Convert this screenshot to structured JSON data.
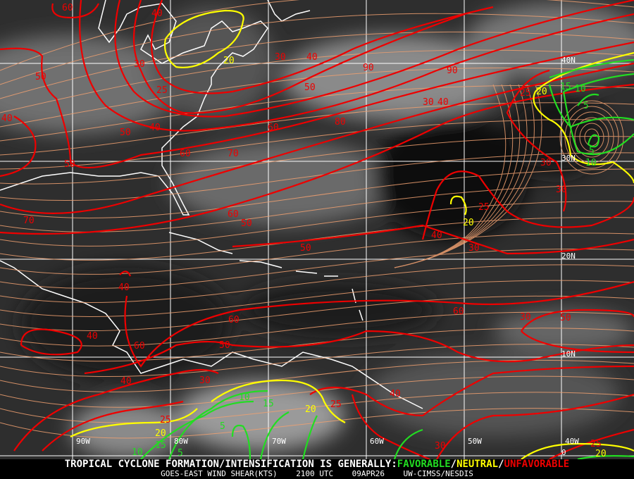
{
  "footer": {
    "headline_prefix": "TROPICAL CYCLONE FORMATION/INTENSIFICATION IS GENERALLY:",
    "favorable": "FAVORABLE",
    "sep1": "/",
    "neutral": "NEUTRAL",
    "sep2": "/",
    "unfavorable": "UNFAVORABLE",
    "product": "GOES-EAST WIND SHEAR(KTS)",
    "time": "2100 UTC",
    "date": "09APR26",
    "source": "UW-CIMSS/NESDIS"
  },
  "colors": {
    "favorable": "#22dd22",
    "neutral": "#ffff00",
    "unfavorable": "#ee0000",
    "streamline": "#f0a070",
    "grid": "#ffffff",
    "coastline": "#ffffff"
  },
  "grid": {
    "longitudes": [
      "90W",
      "80W",
      "70W",
      "60W",
      "50W",
      "40W"
    ],
    "latitudes": [
      "40N",
      "30N",
      "20N",
      "10N",
      "0"
    ]
  },
  "contour_labels": [
    {
      "value": "60",
      "level": "unfavorable"
    },
    {
      "value": "40",
      "level": "unfavorable"
    },
    {
      "value": "30",
      "level": "unfavorable"
    },
    {
      "value": "30",
      "level": "unfavorable"
    },
    {
      "value": "40",
      "level": "unfavorable"
    },
    {
      "value": "50",
      "level": "unfavorable"
    },
    {
      "value": "25",
      "level": "unfavorable"
    },
    {
      "value": "50",
      "level": "unfavorable"
    },
    {
      "value": "40",
      "level": "unfavorable"
    },
    {
      "value": "50",
      "level": "unfavorable"
    },
    {
      "value": "40",
      "level": "unfavorable"
    },
    {
      "value": "60",
      "level": "unfavorable"
    },
    {
      "value": "80",
      "level": "unfavorable"
    },
    {
      "value": "90",
      "level": "unfavorable"
    },
    {
      "value": "90",
      "level": "unfavorable"
    },
    {
      "value": "60",
      "level": "unfavorable"
    },
    {
      "value": "70",
      "level": "unfavorable"
    },
    {
      "value": "50",
      "level": "unfavorable"
    },
    {
      "value": "70",
      "level": "unfavorable"
    },
    {
      "value": "60",
      "level": "unfavorable"
    },
    {
      "value": "50",
      "level": "unfavorable"
    },
    {
      "value": "50",
      "level": "unfavorable"
    },
    {
      "value": "25",
      "level": "unfavorable"
    },
    {
      "value": "30",
      "level": "unfavorable"
    },
    {
      "value": "30",
      "level": "unfavorable"
    },
    {
      "value": "25",
      "level": "unfavorable"
    },
    {
      "value": "40",
      "level": "unfavorable"
    },
    {
      "value": "30",
      "level": "unfavorable"
    },
    {
      "value": "40",
      "level": "unfavorable"
    },
    {
      "value": "60",
      "level": "unfavorable"
    },
    {
      "value": "60",
      "level": "unfavorable"
    },
    {
      "value": "30",
      "level": "unfavorable"
    },
    {
      "value": "50",
      "level": "unfavorable"
    },
    {
      "value": "40",
      "level": "unfavorable"
    },
    {
      "value": "60",
      "level": "unfavorable"
    },
    {
      "value": "50",
      "level": "unfavorable"
    },
    {
      "value": "40",
      "level": "unfavorable"
    },
    {
      "value": "30",
      "level": "unfavorable"
    },
    {
      "value": "40",
      "level": "unfavorable"
    },
    {
      "value": "25",
      "level": "unfavorable"
    },
    {
      "value": "25",
      "level": "unfavorable"
    },
    {
      "value": "30",
      "level": "unfavorable"
    },
    {
      "value": "25",
      "level": "unfavorable"
    },
    {
      "value": "30",
      "level": "unfavorable"
    },
    {
      "value": "40",
      "level": "unfavorable"
    },
    {
      "value": "20",
      "level": "neutral"
    },
    {
      "value": "20",
      "level": "neutral"
    },
    {
      "value": "20",
      "level": "neutral"
    },
    {
      "value": "20",
      "level": "neutral"
    },
    {
      "value": "20",
      "level": "neutral"
    },
    {
      "value": "20",
      "level": "neutral"
    },
    {
      "value": "15",
      "level": "favorable"
    },
    {
      "value": "10",
      "level": "favorable"
    },
    {
      "value": "5",
      "level": "favorable"
    },
    {
      "value": "5",
      "level": "favorable"
    },
    {
      "value": "10",
      "level": "favorable"
    },
    {
      "value": "10",
      "level": "favorable"
    },
    {
      "value": "15",
      "level": "favorable"
    },
    {
      "value": "5",
      "level": "favorable"
    },
    {
      "value": "15",
      "level": "favorable"
    },
    {
      "value": "10",
      "level": "favorable"
    },
    {
      "value": "5",
      "level": "favorable"
    }
  ]
}
